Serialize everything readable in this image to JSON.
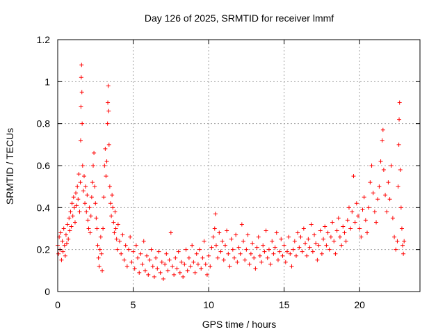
{
  "chart_data": {
    "type": "scatter",
    "title": "Day 126 of 2025, SRMTID for receiver lmmf",
    "xlabel": "GPS time / hours",
    "ylabel": "SRMTID / TECUs",
    "xlim": [
      0,
      24
    ],
    "ylim": [
      0,
      1.2
    ],
    "xticks": [
      0,
      5,
      10,
      15,
      20
    ],
    "xtick_labels": [
      "0",
      "5",
      "10",
      "15",
      "20"
    ],
    "yticks": [
      0,
      0.2,
      0.4,
      0.6,
      0.8,
      1,
      1.2
    ],
    "ytick_labels": [
      "0",
      "0.2",
      "0.4",
      "0.6",
      "0.8",
      "1",
      "1.2"
    ],
    "grid": true,
    "marker": "+",
    "series": [
      {
        "name": "SRMTID",
        "color": "#ff0000",
        "points": [
          [
            0.0,
            0.22
          ],
          [
            0.05,
            0.18
          ],
          [
            0.1,
            0.26
          ],
          [
            0.15,
            0.2
          ],
          [
            0.2,
            0.28
          ],
          [
            0.25,
            0.15
          ],
          [
            0.3,
            0.24
          ],
          [
            0.35,
            0.19
          ],
          [
            0.4,
            0.3
          ],
          [
            0.45,
            0.22
          ],
          [
            0.5,
            0.17
          ],
          [
            0.55,
            0.27
          ],
          [
            0.6,
            0.23
          ],
          [
            0.65,
            0.32
          ],
          [
            0.7,
            0.25
          ],
          [
            0.75,
            0.35
          ],
          [
            0.8,
            0.29
          ],
          [
            0.85,
            0.38
          ],
          [
            0.9,
            0.31
          ],
          [
            0.95,
            0.42
          ],
          [
            1.0,
            0.36
          ],
          [
            1.05,
            0.45
          ],
          [
            1.1,
            0.4
          ],
          [
            1.15,
            0.33
          ],
          [
            1.2,
            0.47
          ],
          [
            1.25,
            0.41
          ],
          [
            1.3,
            0.5
          ],
          [
            1.35,
            0.44
          ],
          [
            1.4,
            0.56
          ],
          [
            1.45,
            0.38
          ],
          [
            1.5,
            0.52
          ],
          [
            1.52,
            0.72
          ],
          [
            1.54,
            0.88
          ],
          [
            1.56,
            1.02
          ],
          [
            1.58,
            1.08
          ],
          [
            1.6,
            0.95
          ],
          [
            1.62,
            0.8
          ],
          [
            1.65,
            0.6
          ],
          [
            1.7,
            0.48
          ],
          [
            1.75,
            0.55
          ],
          [
            1.8,
            0.42
          ],
          [
            1.85,
            0.5
          ],
          [
            1.9,
            0.38
          ],
          [
            1.95,
            0.46
          ],
          [
            2.0,
            0.34
          ],
          [
            2.05,
            0.3
          ],
          [
            2.1,
            0.4
          ],
          [
            2.15,
            0.28
          ],
          [
            2.2,
            0.36
          ],
          [
            2.25,
            0.45
          ],
          [
            2.3,
            0.52
          ],
          [
            2.35,
            0.6
          ],
          [
            2.4,
            0.66
          ],
          [
            2.45,
            0.5
          ],
          [
            2.5,
            0.42
          ],
          [
            2.55,
            0.35
          ],
          [
            2.6,
            0.3
          ],
          [
            2.65,
            0.22
          ],
          [
            2.7,
            0.16
          ],
          [
            2.75,
            0.12
          ],
          [
            2.8,
            0.2
          ],
          [
            2.85,
            0.26
          ],
          [
            2.9,
            0.18
          ],
          [
            2.95,
            0.1
          ],
          [
            3.0,
            0.3
          ],
          [
            3.05,
            0.45
          ],
          [
            3.1,
            0.6
          ],
          [
            3.15,
            0.68
          ],
          [
            3.2,
            0.55
          ],
          [
            3.25,
            0.62
          ],
          [
            3.3,
            0.8
          ],
          [
            3.32,
            0.9
          ],
          [
            3.35,
            0.98
          ],
          [
            3.38,
            0.86
          ],
          [
            3.4,
            0.7
          ],
          [
            3.45,
            0.5
          ],
          [
            3.5,
            0.42
          ],
          [
            3.55,
            0.36
          ],
          [
            3.6,
            0.46
          ],
          [
            3.65,
            0.4
          ],
          [
            3.7,
            0.33
          ],
          [
            3.75,
            0.28
          ],
          [
            3.8,
            0.38
          ],
          [
            3.85,
            0.3
          ],
          [
            3.9,
            0.25
          ],
          [
            3.95,
            0.2
          ],
          [
            4.0,
            0.32
          ],
          [
            4.1,
            0.24
          ],
          [
            4.2,
            0.18
          ],
          [
            4.3,
            0.27
          ],
          [
            4.4,
            0.15
          ],
          [
            4.5,
            0.22
          ],
          [
            4.6,
            0.12
          ],
          [
            4.7,
            0.2
          ],
          [
            4.8,
            0.26
          ],
          [
            4.9,
            0.14
          ],
          [
            5.0,
            0.19
          ],
          [
            5.1,
            0.11
          ],
          [
            5.2,
            0.22
          ],
          [
            5.3,
            0.16
          ],
          [
            5.4,
            0.09
          ],
          [
            5.5,
            0.18
          ],
          [
            5.6,
            0.13
          ],
          [
            5.7,
            0.24
          ],
          [
            5.8,
            0.1
          ],
          [
            5.9,
            0.17
          ],
          [
            6.0,
            0.08
          ],
          [
            6.1,
            0.15
          ],
          [
            6.2,
            0.2
          ],
          [
            6.3,
            0.12
          ],
          [
            6.4,
            0.07
          ],
          [
            6.5,
            0.16
          ],
          [
            6.6,
            0.11
          ],
          [
            6.7,
            0.19
          ],
          [
            6.8,
            0.09
          ],
          [
            6.9,
            0.14
          ],
          [
            7.0,
            0.06
          ],
          [
            7.1,
            0.13
          ],
          [
            7.2,
            0.18
          ],
          [
            7.3,
            0.1
          ],
          [
            7.4,
            0.15
          ],
          [
            7.5,
            0.28
          ],
          [
            7.6,
            0.12
          ],
          [
            7.7,
            0.08
          ],
          [
            7.8,
            0.16
          ],
          [
            7.9,
            0.11
          ],
          [
            8.0,
            0.19
          ],
          [
            8.1,
            0.09
          ],
          [
            8.2,
            0.14
          ],
          [
            8.3,
            0.07
          ],
          [
            8.4,
            0.13
          ],
          [
            8.5,
            0.2
          ],
          [
            8.6,
            0.1
          ],
          [
            8.7,
            0.16
          ],
          [
            8.8,
            0.12
          ],
          [
            8.9,
            0.22
          ],
          [
            9.0,
            0.14
          ],
          [
            9.1,
            0.09
          ],
          [
            9.2,
            0.18
          ],
          [
            9.3,
            0.13
          ],
          [
            9.4,
            0.2
          ],
          [
            9.5,
            0.11
          ],
          [
            9.6,
            0.16
          ],
          [
            9.7,
            0.24
          ],
          [
            9.8,
            0.13
          ],
          [
            9.9,
            0.08
          ],
          [
            10.0,
            0.17
          ],
          [
            10.1,
            0.12
          ],
          [
            10.2,
            0.21
          ],
          [
            10.3,
            0.26
          ],
          [
            10.4,
            0.3
          ],
          [
            10.45,
            0.37
          ],
          [
            10.5,
            0.22
          ],
          [
            10.6,
            0.16
          ],
          [
            10.7,
            0.28
          ],
          [
            10.8,
            0.19
          ],
          [
            10.9,
            0.24
          ],
          [
            11.0,
            0.15
          ],
          [
            11.1,
            0.22
          ],
          [
            11.2,
            0.29
          ],
          [
            11.3,
            0.18
          ],
          [
            11.4,
            0.12
          ],
          [
            11.5,
            0.25
          ],
          [
            11.6,
            0.2
          ],
          [
            11.7,
            0.16
          ],
          [
            11.8,
            0.27
          ],
          [
            11.9,
            0.14
          ],
          [
            12.0,
            0.21
          ],
          [
            12.1,
            0.18
          ],
          [
            12.2,
            0.32
          ],
          [
            12.3,
            0.24
          ],
          [
            12.4,
            0.15
          ],
          [
            12.5,
            0.2
          ],
          [
            12.6,
            0.27
          ],
          [
            12.7,
            0.13
          ],
          [
            12.8,
            0.18
          ],
          [
            12.9,
            0.23
          ],
          [
            13.0,
            0.16
          ],
          [
            13.1,
            0.11
          ],
          [
            13.2,
            0.21
          ],
          [
            13.3,
            0.26
          ],
          [
            13.4,
            0.17
          ],
          [
            13.5,
            0.14
          ],
          [
            13.6,
            0.22
          ],
          [
            13.7,
            0.19
          ],
          [
            13.8,
            0.29
          ],
          [
            13.9,
            0.16
          ],
          [
            14.0,
            0.2
          ],
          [
            14.1,
            0.13
          ],
          [
            14.2,
            0.24
          ],
          [
            14.3,
            0.18
          ],
          [
            14.4,
            0.21
          ],
          [
            14.5,
            0.28
          ],
          [
            14.6,
            0.15
          ],
          [
            14.7,
            0.19
          ],
          [
            14.8,
            0.25
          ],
          [
            14.9,
            0.17
          ],
          [
            15.0,
            0.22
          ],
          [
            15.1,
            0.14
          ],
          [
            15.2,
            0.19
          ],
          [
            15.3,
            0.26
          ],
          [
            15.4,
            0.18
          ],
          [
            15.5,
            0.12
          ],
          [
            15.6,
            0.2
          ],
          [
            15.7,
            0.24
          ],
          [
            15.8,
            0.17
          ],
          [
            15.9,
            0.28
          ],
          [
            16.0,
            0.21
          ],
          [
            16.1,
            0.26
          ],
          [
            16.2,
            0.19
          ],
          [
            16.3,
            0.3
          ],
          [
            16.4,
            0.23
          ],
          [
            16.5,
            0.17
          ],
          [
            16.6,
            0.25
          ],
          [
            16.7,
            0.21
          ],
          [
            16.8,
            0.32
          ],
          [
            16.9,
            0.19
          ],
          [
            17.0,
            0.27
          ],
          [
            17.1,
            0.23
          ],
          [
            17.2,
            0.15
          ],
          [
            17.3,
            0.22
          ],
          [
            17.4,
            0.29
          ],
          [
            17.5,
            0.18
          ],
          [
            17.6,
            0.25
          ],
          [
            17.7,
            0.31
          ],
          [
            17.8,
            0.22
          ],
          [
            17.9,
            0.28
          ],
          [
            18.0,
            0.2
          ],
          [
            18.1,
            0.26
          ],
          [
            18.2,
            0.33
          ],
          [
            18.3,
            0.24
          ],
          [
            18.4,
            0.18
          ],
          [
            18.5,
            0.29
          ],
          [
            18.6,
            0.35
          ],
          [
            18.7,
            0.26
          ],
          [
            18.8,
            0.22
          ],
          [
            18.9,
            0.31
          ],
          [
            19.0,
            0.28
          ],
          [
            19.1,
            0.24
          ],
          [
            19.2,
            0.34
          ],
          [
            19.3,
            0.4
          ],
          [
            19.4,
            0.3
          ],
          [
            19.5,
            0.38
          ],
          [
            19.6,
            0.55
          ],
          [
            19.7,
            0.33
          ],
          [
            19.8,
            0.42
          ],
          [
            19.9,
            0.36
          ],
          [
            20.0,
            0.3
          ],
          [
            20.1,
            0.26
          ],
          [
            20.2,
            0.39
          ],
          [
            20.3,
            0.45
          ],
          [
            20.4,
            0.34
          ],
          [
            20.5,
            0.28
          ],
          [
            20.6,
            0.4
          ],
          [
            20.7,
            0.52
          ],
          [
            20.8,
            0.6
          ],
          [
            20.9,
            0.47
          ],
          [
            21.0,
            0.38
          ],
          [
            21.1,
            0.33
          ],
          [
            21.2,
            0.44
          ],
          [
            21.3,
            0.5
          ],
          [
            21.4,
            0.62
          ],
          [
            21.5,
            0.72
          ],
          [
            21.55,
            0.77
          ],
          [
            21.6,
            0.58
          ],
          [
            21.7,
            0.46
          ],
          [
            21.8,
            0.38
          ],
          [
            21.9,
            0.52
          ],
          [
            22.0,
            0.44
          ],
          [
            22.1,
            0.6
          ],
          [
            22.2,
            0.35
          ],
          [
            22.3,
            0.26
          ],
          [
            22.4,
            0.2
          ],
          [
            22.5,
            0.24
          ],
          [
            22.55,
            0.5
          ],
          [
            22.6,
            0.7
          ],
          [
            22.62,
            0.82
          ],
          [
            22.65,
            0.9
          ],
          [
            22.7,
            0.58
          ],
          [
            22.75,
            0.4
          ],
          [
            22.8,
            0.3
          ],
          [
            22.85,
            0.22
          ],
          [
            22.9,
            0.18
          ],
          [
            22.95,
            0.24
          ]
        ]
      }
    ]
  }
}
